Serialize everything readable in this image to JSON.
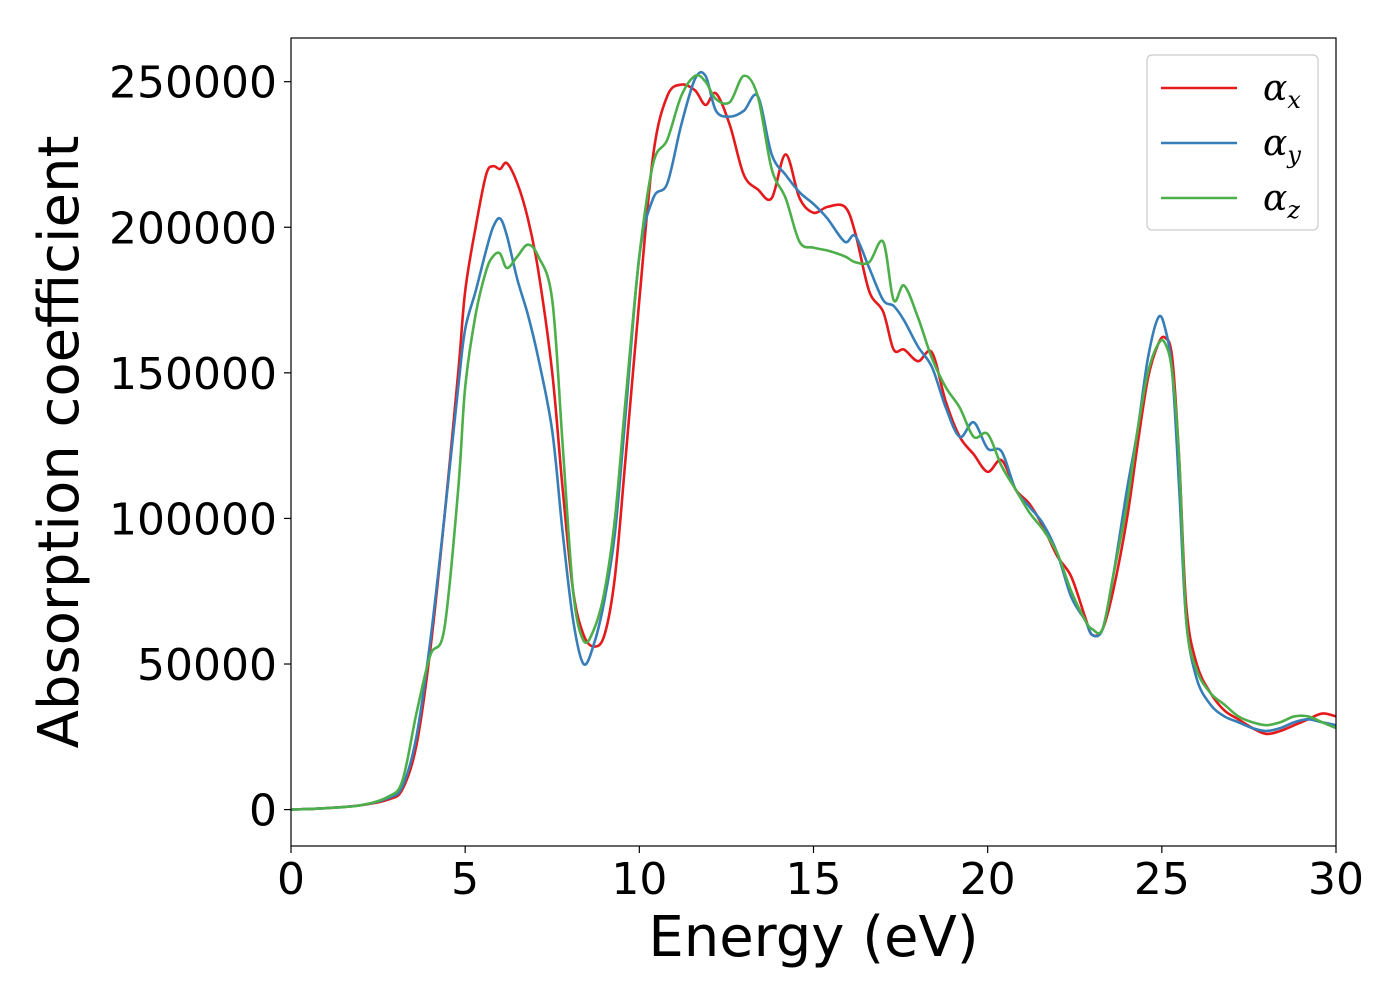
{
  "chart_data": {
    "type": "line",
    "xlabel": "Energy (eV)",
    "ylabel": "Absorption coefficient",
    "xlim": [
      0,
      30
    ],
    "ylim": [
      -12500,
      265000
    ],
    "xticks": [
      0,
      5,
      10,
      15,
      20,
      25,
      30
    ],
    "xtick_labels": [
      "0",
      "5",
      "10",
      "15",
      "20",
      "25",
      "30"
    ],
    "yticks": [
      0,
      50000,
      100000,
      150000,
      200000,
      250000
    ],
    "ytick_labels": [
      "0",
      "50000",
      "100000",
      "150000",
      "200000",
      "250000"
    ],
    "grid": false,
    "legend_position": "top-right",
    "series": [
      {
        "name": "αx",
        "base": "α",
        "sub": "x",
        "color": "#e41a1c",
        "x": [
          0,
          1,
          2,
          2.8,
          3.2,
          3.6,
          4.0,
          4.4,
          4.8,
          5.0,
          5.3,
          5.6,
          5.8,
          6.0,
          6.2,
          6.5,
          6.8,
          7.1,
          7.5,
          7.8,
          8.1,
          8.4,
          8.7,
          9.0,
          9.3,
          9.6,
          10.0,
          10.4,
          10.8,
          11.2,
          11.6,
          11.9,
          12.2,
          12.6,
          13.0,
          13.4,
          13.8,
          14.2,
          14.6,
          15.0,
          15.4,
          15.9,
          16.2,
          16.6,
          17.0,
          17.3,
          17.6,
          18.0,
          18.4,
          18.8,
          19.2,
          19.6,
          20.0,
          20.4,
          20.8,
          21.2,
          21.6,
          22.0,
          22.4,
          22.8,
          23.0,
          23.3,
          23.6,
          24.0,
          24.3,
          24.6,
          24.9,
          25.1,
          25.3,
          25.5,
          25.7,
          26.0,
          26.4,
          26.8,
          27.2,
          27.6,
          28.0,
          28.4,
          28.8,
          29.2,
          29.6,
          30.0
        ],
        "y": [
          0,
          500,
          1500,
          3500,
          7000,
          22000,
          55000,
          100000,
          150000,
          178000,
          200000,
          218000,
          221000,
          220000,
          222000,
          215000,
          203000,
          185000,
          150000,
          110000,
          75000,
          60000,
          56000,
          60000,
          80000,
          120000,
          175000,
          225000,
          245000,
          249000,
          247000,
          242000,
          246000,
          235000,
          218000,
          213000,
          210000,
          225000,
          210000,
          205000,
          207000,
          207000,
          198000,
          178000,
          171000,
          158000,
          158000,
          154000,
          157000,
          140000,
          128000,
          122000,
          116000,
          120000,
          110000,
          105000,
          97000,
          87000,
          80000,
          66000,
          60000,
          62000,
          75000,
          100000,
          125000,
          148000,
          160000,
          162000,
          155000,
          120000,
          70000,
          50000,
          40000,
          34000,
          31000,
          28000,
          26000,
          27000,
          29000,
          31000,
          33000,
          32000
        ]
      },
      {
        "name": "αy",
        "base": "α",
        "sub": "y",
        "color": "#377eb8",
        "x": [
          0,
          1,
          2,
          2.8,
          3.2,
          3.6,
          4.0,
          4.4,
          4.8,
          5.0,
          5.3,
          5.6,
          5.8,
          6.0,
          6.2,
          6.5,
          6.8,
          7.1,
          7.5,
          7.8,
          8.1,
          8.4,
          8.7,
          9.0,
          9.3,
          9.6,
          10.0,
          10.4,
          10.8,
          11.2,
          11.6,
          11.9,
          12.2,
          12.6,
          13.0,
          13.4,
          13.8,
          14.2,
          14.6,
          15.0,
          15.4,
          15.9,
          16.2,
          16.6,
          17.0,
          17.3,
          17.6,
          18.0,
          18.4,
          18.8,
          19.2,
          19.6,
          20.0,
          20.4,
          20.8,
          21.2,
          21.6,
          22.0,
          22.4,
          22.8,
          23.0,
          23.3,
          23.6,
          24.0,
          24.3,
          24.6,
          24.9,
          25.1,
          25.3,
          25.5,
          25.7,
          26.0,
          26.4,
          26.8,
          27.2,
          27.6,
          28.0,
          28.4,
          28.8,
          29.2,
          29.6,
          30.0
        ],
        "y": [
          0,
          500,
          1500,
          4000,
          8000,
          25000,
          58000,
          100000,
          145000,
          165000,
          178000,
          192000,
          200000,
          203000,
          197000,
          182000,
          170000,
          155000,
          130000,
          95000,
          65000,
          50000,
          57000,
          72000,
          95000,
          135000,
          190000,
          210000,
          215000,
          235000,
          251000,
          252000,
          240000,
          238000,
          240000,
          245000,
          225000,
          218000,
          212000,
          208000,
          203000,
          195000,
          197000,
          186000,
          175000,
          173000,
          168000,
          159000,
          152000,
          138000,
          128000,
          133000,
          124000,
          123000,
          110000,
          104000,
          98000,
          88000,
          73000,
          65000,
          60000,
          62000,
          80000,
          110000,
          130000,
          155000,
          169000,
          165000,
          150000,
          110000,
          65000,
          45000,
          36000,
          32000,
          30000,
          28000,
          27000,
          28000,
          30000,
          31000,
          30000,
          29000
        ]
      },
      {
        "name": "αz",
        "base": "α",
        "sub": "z",
        "color": "#4daf4a",
        "x": [
          0,
          1,
          2,
          2.8,
          3.2,
          3.6,
          4.0,
          4.4,
          4.8,
          5.0,
          5.3,
          5.6,
          5.8,
          6.0,
          6.2,
          6.5,
          6.8,
          7.1,
          7.5,
          7.8,
          8.1,
          8.4,
          8.7,
          9.0,
          9.3,
          9.6,
          10.0,
          10.4,
          10.8,
          11.2,
          11.6,
          11.9,
          12.2,
          12.6,
          13.0,
          13.4,
          13.8,
          14.2,
          14.6,
          15.0,
          15.4,
          15.9,
          16.2,
          16.6,
          17.0,
          17.3,
          17.6,
          18.0,
          18.4,
          18.8,
          19.2,
          19.6,
          20.0,
          20.4,
          20.8,
          21.2,
          21.6,
          22.0,
          22.4,
          22.8,
          23.0,
          23.3,
          23.6,
          24.0,
          24.3,
          24.6,
          24.9,
          25.1,
          25.3,
          25.5,
          25.7,
          26.0,
          26.4,
          26.8,
          27.2,
          27.6,
          28.0,
          28.4,
          28.8,
          29.2,
          29.6,
          30.0
        ],
        "y": [
          0,
          500,
          1500,
          4500,
          10000,
          33000,
          53000,
          62000,
          110000,
          145000,
          170000,
          185000,
          190000,
          191000,
          186000,
          190000,
          194000,
          190000,
          175000,
          125000,
          75000,
          58000,
          62000,
          75000,
          100000,
          140000,
          190000,
          222000,
          230000,
          245000,
          252000,
          250000,
          244000,
          243000,
          252000,
          245000,
          220000,
          210000,
          195000,
          193000,
          192000,
          190000,
          188000,
          188000,
          195000,
          175000,
          180000,
          169000,
          155000,
          145000,
          138000,
          128000,
          129000,
          118000,
          110000,
          102000,
          96000,
          88000,
          75000,
          65000,
          62000,
          62000,
          80000,
          105000,
          130000,
          150000,
          160000,
          160000,
          150000,
          120000,
          65000,
          48000,
          40000,
          36000,
          32000,
          30000,
          29000,
          30000,
          32000,
          32000,
          30000,
          28000
        ]
      }
    ]
  }
}
